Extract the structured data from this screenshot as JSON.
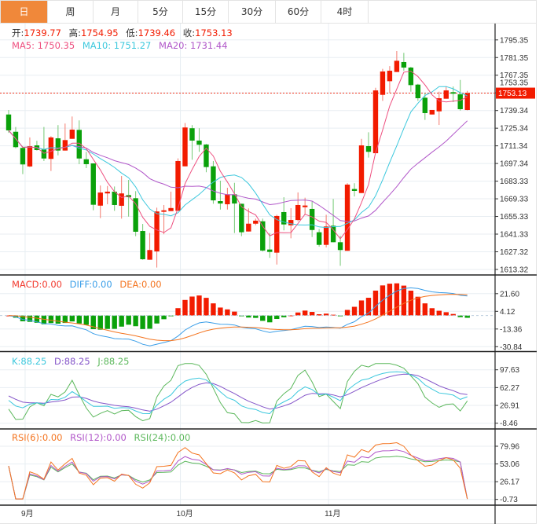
{
  "tabs": [
    {
      "label": "日",
      "active": true
    },
    {
      "label": "周"
    },
    {
      "label": "月"
    },
    {
      "label": "5分"
    },
    {
      "label": "15分"
    },
    {
      "label": "30分"
    },
    {
      "label": "60分"
    },
    {
      "label": "4时"
    }
  ],
  "ohlc": {
    "open_label": "开:",
    "open": "1739.77",
    "high_label": "高:",
    "high": "1754.95",
    "low_label": "低:",
    "low": "1739.46",
    "close_label": "收:",
    "close": "1753.13"
  },
  "ma": {
    "ma5": "MA5: 1750.35",
    "ma10": "MA10: 1751.27",
    "ma20": "MA20: 1731.44"
  },
  "macd_legend": {
    "macd": "MACD:0.00",
    "diff": "DIFF:0.00",
    "dea": "DEA:0.00"
  },
  "kdj_legend": {
    "k": "K:88.25",
    "d": "D:88.25",
    "j": "J:88.25"
  },
  "rsi_legend": {
    "rsi6": "RSI(6):0.00",
    "rsi12": "RSI(12):0.00",
    "rsi24": "RSI(24):0.00"
  },
  "colors": {
    "up": "#f21b00",
    "down": "#0aa10a",
    "ma5": "#ee4f7f",
    "ma10": "#3cc8dd",
    "ma20": "#b157c9",
    "accent": "#f0883a"
  },
  "current_price": "1753.13",
  "chart_data": {
    "type": "candlestick",
    "price_ticks": [
      "1795.35",
      "1781.35",
      "1767.35",
      "1753.35",
      "1739.34",
      "1725.34",
      "1711.34",
      "1697.34",
      "1683.33",
      "1669.33",
      "1655.33",
      "1641.33",
      "1627.32",
      "1613.32"
    ],
    "macd_ticks": [
      "21.60",
      "4.12",
      "-13.36",
      "-30.84"
    ],
    "kdj_ticks": [
      "97.63",
      "62.27",
      "26.91",
      "-8.46"
    ],
    "rsi_ticks": [
      "79.96",
      "53.06",
      "26.17",
      "-0.73"
    ],
    "months": [
      {
        "label": "9月",
        "index": 2
      },
      {
        "label": "10月",
        "index": 24
      },
      {
        "label": "11月",
        "index": 45
      }
    ],
    "candles_ochl": [
      [
        1736.2,
        1723.6,
        1739.8,
        1721.6
      ],
      [
        1722.5,
        1710.3,
        1726.3,
        1709.4
      ],
      [
        1709.7,
        1696.6,
        1710.7,
        1688.9
      ],
      [
        1695.0,
        1711.1,
        1718.0,
        1694.5
      ],
      [
        1711.7,
        1708.0,
        1715.3,
        1707.6
      ],
      [
        1708.4,
        1701.3,
        1726.3,
        1699.3
      ],
      [
        1701.0,
        1718.0,
        1719.0,
        1691.4
      ],
      [
        1717.3,
        1707.6,
        1727.8,
        1703.8
      ],
      [
        1707.6,
        1715.9,
        1729.0,
        1707.6
      ],
      [
        1716.9,
        1724.2,
        1734.6,
        1716.9
      ],
      [
        1724.0,
        1701.3,
        1731.5,
        1696.8
      ],
      [
        1700.7,
        1696.8,
        1706.6,
        1693.7
      ],
      [
        1697.4,
        1664.6,
        1697.4,
        1660.2
      ],
      [
        1663.9,
        1674.3,
        1679.9,
        1654.0
      ],
      [
        1673.6,
        1675.0,
        1679.5,
        1665.0
      ],
      [
        1675.0,
        1664.4,
        1679.1,
        1659.8
      ],
      [
        1663.8,
        1673.6,
        1687.4,
        1653.6
      ],
      [
        1672.3,
        1670.6,
        1684.3,
        1655.2
      ],
      [
        1669.8,
        1643.2,
        1675.4,
        1639.7
      ],
      [
        1643.8,
        1621.4,
        1649.4,
        1621.0
      ],
      [
        1621.0,
        1628.7,
        1642.2,
        1621.0
      ],
      [
        1627.6,
        1659.3,
        1662.3,
        1614.8
      ],
      [
        1659.0,
        1660.2,
        1664.4,
        1641.2
      ],
      [
        1659.6,
        1662.0,
        1675.0,
        1659.6
      ],
      [
        1659.8,
        1699.3,
        1701.4,
        1659.8
      ],
      [
        1695.1,
        1725.9,
        1729.4,
        1695.1
      ],
      [
        1725.3,
        1715.5,
        1727.8,
        1700.3
      ],
      [
        1715.5,
        1712.2,
        1725.3,
        1706.6
      ],
      [
        1712.4,
        1694.5,
        1712.8,
        1690.4
      ],
      [
        1695.1,
        1668.1,
        1699.3,
        1665.4
      ],
      [
        1667.5,
        1665.6,
        1683.7,
        1660.8
      ],
      [
        1665.0,
        1672.9,
        1678.1,
        1660.8
      ],
      [
        1672.9,
        1665.6,
        1682.0,
        1642.2
      ],
      [
        1665.4,
        1642.8,
        1665.4,
        1639.7
      ],
      [
        1643.4,
        1649.6,
        1661.7,
        1643.4
      ],
      [
        1649.6,
        1652.0,
        1653.6,
        1648.4
      ],
      [
        1651.5,
        1628.3,
        1653.6,
        1627.6
      ],
      [
        1629.1,
        1627.2,
        1642.2,
        1622.5
      ],
      [
        1626.6,
        1655.7,
        1656.7,
        1617.2
      ],
      [
        1658.8,
        1649.0,
        1670.6,
        1644.3
      ],
      [
        1648.3,
        1652.5,
        1661.9,
        1638.0
      ],
      [
        1652.5,
        1664.4,
        1674.4,
        1651.5
      ],
      [
        1662.7,
        1664.0,
        1670.2,
        1656.7
      ],
      [
        1661.3,
        1644.6,
        1667.1,
        1639.0
      ],
      [
        1642.8,
        1632.8,
        1645.3,
        1631.4
      ],
      [
        1632.8,
        1647.4,
        1656.7,
        1630.8
      ],
      [
        1648.0,
        1634.9,
        1669.2,
        1634.9
      ],
      [
        1634.9,
        1628.7,
        1640.1,
        1616.2
      ],
      [
        1628.1,
        1680.6,
        1681.7,
        1628.1
      ],
      [
        1677.1,
        1675.6,
        1681.7,
        1671.2
      ],
      [
        1673.9,
        1711.7,
        1716.9,
        1673.9
      ],
      [
        1711.1,
        1706.6,
        1722.1,
        1702.0
      ],
      [
        1705.5,
        1755.3,
        1757.4,
        1705.5
      ],
      [
        1751.8,
        1770.3,
        1772.4,
        1747.0
      ],
      [
        1762.6,
        1770.9,
        1774.6,
        1753.3
      ],
      [
        1769.9,
        1778.8,
        1786.5,
        1769.9
      ],
      [
        1777.8,
        1773.4,
        1785.1,
        1770.9
      ],
      [
        1773.4,
        1759.5,
        1774.0,
        1754.3
      ],
      [
        1759.9,
        1749.1,
        1760.5,
        1747.0
      ],
      [
        1749.5,
        1737.3,
        1753.3,
        1731.9
      ],
      [
        1736.2,
        1739.8,
        1739.8,
        1736.2
      ],
      [
        1738.7,
        1749.1,
        1754.3,
        1727.9
      ],
      [
        1748.7,
        1755.3,
        1758.6,
        1748.7
      ],
      [
        1753.9,
        1752.7,
        1758.4,
        1746.0
      ],
      [
        1752.2,
        1740.4,
        1763.6,
        1739.3
      ],
      [
        1739.77,
        1753.13,
        1754.95,
        1739.46
      ]
    ]
  }
}
